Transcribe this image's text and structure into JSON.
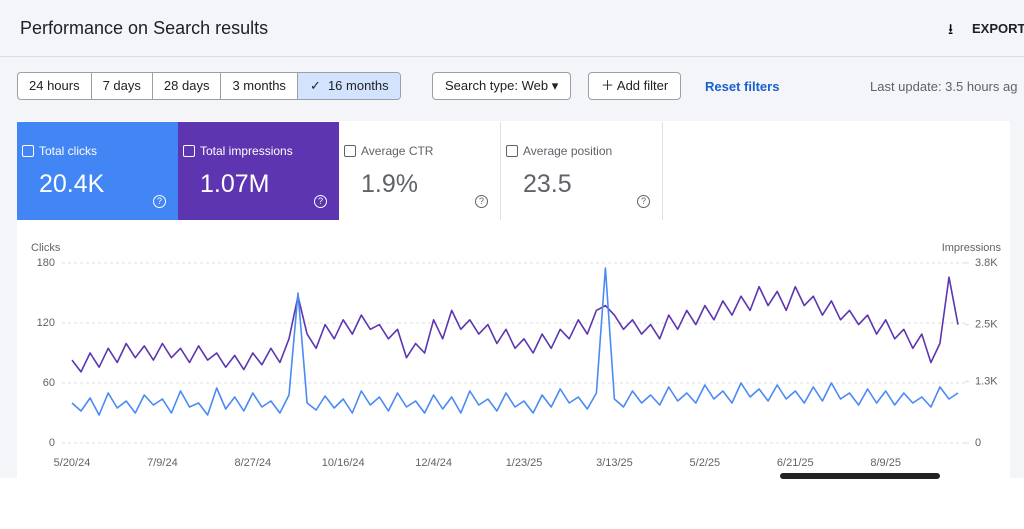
{
  "header": {
    "title": "Performance on Search results",
    "export": "EXPORT"
  },
  "filters": {
    "ranges": [
      "24 hours",
      "7 days",
      "28 days",
      "3 months",
      "16 months"
    ],
    "search_type": "Search type: Web",
    "add_filter": "Add filter",
    "reset": "Reset filters",
    "last_update": "Last update: 3.5 hours ag"
  },
  "metrics": [
    {
      "label": "Total clicks",
      "value": "20.4K"
    },
    {
      "label": "Total impressions",
      "value": "1.07M"
    },
    {
      "label": "Average CTR",
      "value": "1.9%"
    },
    {
      "label": "Average position",
      "value": "23.5"
    }
  ],
  "chart_data": {
    "type": "line",
    "y_label": "Clicks",
    "y2_label": "Impressions",
    "categories": [
      "5/20/24",
      null,
      null,
      null,
      null,
      null,
      null,
      null,
      null,
      null,
      "7/9/24",
      null,
      null,
      null,
      null,
      null,
      null,
      null,
      null,
      null,
      "8/27/24",
      null,
      null,
      null,
      null,
      null,
      null,
      null,
      null,
      null,
      "10/16/24",
      null,
      null,
      null,
      null,
      null,
      null,
      null,
      null,
      null,
      "12/4/24",
      null,
      null,
      null,
      null,
      null,
      null,
      null,
      null,
      null,
      "1/23/25",
      null,
      null,
      null,
      null,
      null,
      null,
      null,
      null,
      null,
      "3/13/25",
      null,
      null,
      null,
      null,
      null,
      null,
      null,
      null,
      null,
      "5/2/25",
      null,
      null,
      null,
      null,
      null,
      null,
      null,
      null,
      null,
      "6/21/25",
      null,
      null,
      null,
      null,
      null,
      null,
      null,
      null,
      null,
      "8/9/25",
      null,
      null,
      null,
      null,
      null,
      null,
      null,
      null
    ],
    "ylim": [
      0,
      180
    ],
    "yticks": [
      0,
      60,
      120,
      180
    ],
    "y2lim": [
      0,
      3800
    ],
    "y2ticks": [
      0,
      {
        "value": 1300,
        "label": "1.3K"
      },
      {
        "value": 2500,
        "label": "2.5K"
      },
      {
        "value": 3800,
        "label": "3.8K"
      }
    ],
    "grid": true,
    "series": [
      {
        "name": "Clicks",
        "color": "#4a8af4",
        "values": [
          40,
          32,
          45,
          28,
          50,
          35,
          42,
          30,
          48,
          38,
          44,
          30,
          52,
          36,
          40,
          28,
          55,
          34,
          46,
          32,
          50,
          36,
          42,
          30,
          48,
          150,
          40,
          33,
          47,
          35,
          44,
          30,
          52,
          38,
          46,
          32,
          50,
          36,
          42,
          30,
          48,
          34,
          46,
          30,
          52,
          38,
          44,
          32,
          50,
          36,
          42,
          30,
          48,
          36,
          54,
          40,
          46,
          34,
          50,
          175,
          44,
          36,
          52,
          40,
          48,
          38,
          56,
          42,
          50,
          40,
          58,
          44,
          52,
          40,
          60,
          46,
          54,
          42,
          58,
          44,
          52,
          40,
          56,
          42,
          60,
          44,
          50,
          38,
          54,
          40,
          52,
          38,
          50,
          40,
          46,
          36,
          56,
          44,
          50
        ]
      },
      {
        "name": "Impressions",
        "color": "#5e35b1",
        "axis": "y2",
        "values": [
          1750,
          1500,
          1900,
          1600,
          2000,
          1700,
          2100,
          1800,
          2050,
          1750,
          2100,
          1800,
          2000,
          1700,
          2050,
          1750,
          1900,
          1600,
          1850,
          1550,
          1900,
          1650,
          2000,
          1700,
          2200,
          3100,
          2300,
          2000,
          2500,
          2200,
          2600,
          2300,
          2700,
          2400,
          2500,
          2200,
          2400,
          1800,
          2100,
          1900,
          2600,
          2200,
          2800,
          2400,
          2600,
          2300,
          2500,
          2100,
          2400,
          2000,
          2200,
          1900,
          2300,
          2000,
          2400,
          2200,
          2600,
          2300,
          2800,
          2900,
          2700,
          2400,
          2600,
          2300,
          2500,
          2200,
          2700,
          2400,
          2800,
          2500,
          2900,
          2600,
          3000,
          2700,
          3100,
          2800,
          3300,
          2900,
          3200,
          2800,
          3300,
          2900,
          3100,
          2700,
          3000,
          2600,
          2800,
          2500,
          2700,
          2300,
          2600,
          2200,
          2400,
          2000,
          2300,
          1700,
          2100,
          3500,
          2500
        ]
      }
    ]
  }
}
